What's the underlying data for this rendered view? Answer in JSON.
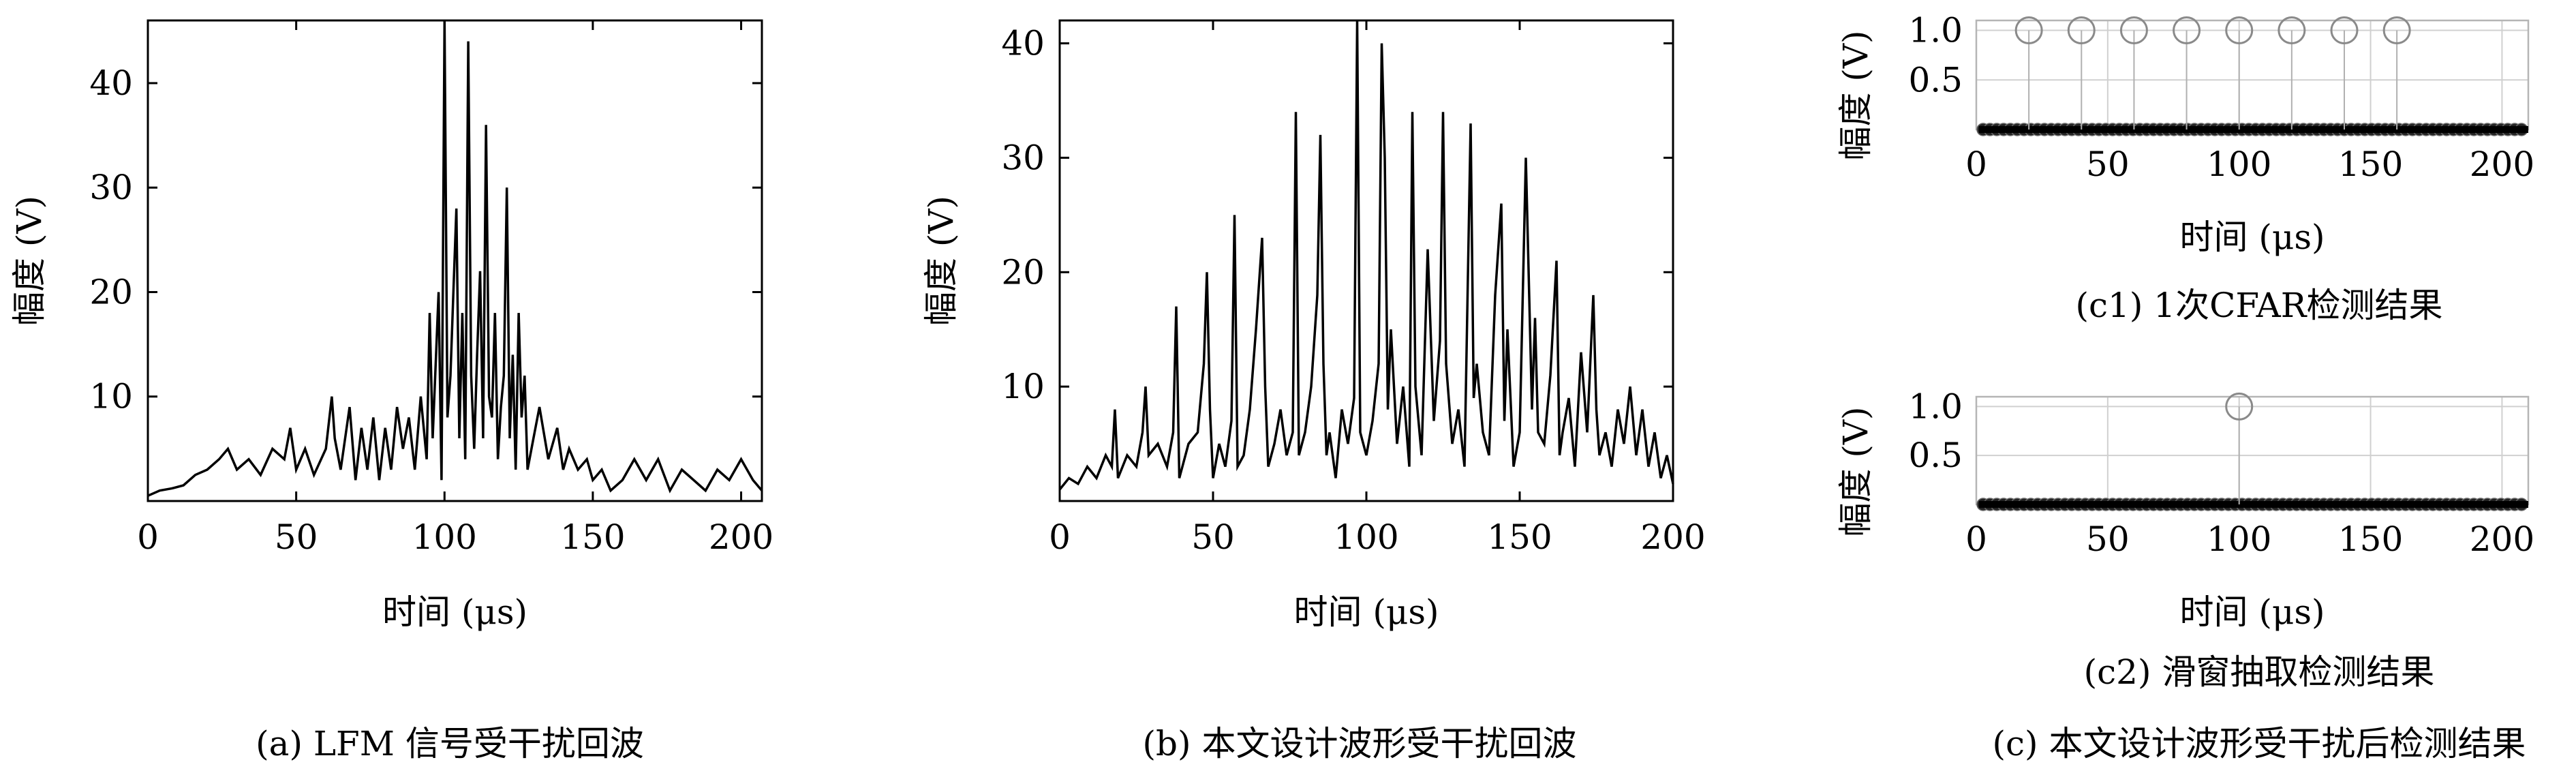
{
  "chart_data": [
    {
      "id": "a",
      "type": "line",
      "caption": "(a) LFM 信号受干扰回波",
      "xlabel": "时间 (μs)",
      "ylabel": "幅度 (V)",
      "xlim": [
        0,
        207
      ],
      "ylim": [
        0,
        46
      ],
      "xticks": [
        0,
        50,
        100,
        150,
        200
      ],
      "yticks": [
        10,
        20,
        30,
        40
      ],
      "grid": false,
      "series": [
        {
          "x": [
            0,
            4,
            8,
            12,
            16,
            20,
            24,
            27,
            30,
            34,
            38,
            42,
            46,
            48,
            50,
            53,
            56,
            60,
            62,
            63,
            65,
            68,
            70,
            72,
            74,
            76,
            78,
            80,
            82,
            84,
            86,
            88,
            90,
            92,
            94,
            95,
            96,
            98,
            99,
            100,
            101,
            102,
            103,
            104,
            105,
            106,
            107,
            108,
            109,
            110,
            111,
            112,
            113,
            114,
            115,
            116,
            117,
            118,
            119,
            120,
            121,
            122,
            123,
            124,
            125,
            126,
            127,
            128,
            130,
            132,
            135,
            138,
            140,
            142,
            145,
            148,
            150,
            153,
            156,
            160,
            164,
            168,
            172,
            176,
            180,
            184,
            188,
            192,
            196,
            200,
            204,
            207
          ],
          "y": [
            0.5,
            1,
            1.2,
            1.5,
            2.5,
            3,
            4,
            5,
            3,
            4,
            2.5,
            5,
            4,
            7,
            3,
            5,
            2.5,
            5,
            10,
            6,
            3,
            9,
            2,
            7,
            3,
            8,
            2,
            7,
            3,
            9,
            5,
            8,
            3,
            10,
            4,
            18,
            6,
            20,
            2,
            46,
            8,
            12,
            20,
            28,
            6,
            18,
            4,
            44,
            12,
            5,
            14,
            22,
            6,
            36,
            10,
            8,
            18,
            4,
            9,
            12,
            30,
            6,
            14,
            3,
            18,
            8,
            12,
            3,
            6,
            9,
            4,
            7,
            3,
            5,
            3,
            4,
            2,
            3,
            1,
            2,
            4,
            2,
            4,
            1,
            3,
            2,
            1,
            3,
            2,
            4,
            2,
            1
          ]
        }
      ]
    },
    {
      "id": "b",
      "type": "line",
      "caption": "(b) 本文设计波形受干扰回波",
      "xlabel": "时间 (μs)",
      "ylabel": "幅度 (V)",
      "xlim": [
        0,
        200
      ],
      "ylim": [
        0,
        42
      ],
      "xticks": [
        0,
        50,
        100,
        150,
        200
      ],
      "yticks": [
        10,
        20,
        30,
        40
      ],
      "grid": false,
      "series": [
        {
          "x": [
            0,
            3,
            6,
            9,
            12,
            15,
            17,
            18,
            19,
            22,
            25,
            27,
            28,
            29,
            32,
            35,
            37,
            38,
            39,
            42,
            45,
            47,
            48,
            49,
            50,
            52,
            54,
            56,
            57,
            58,
            60,
            62,
            64,
            66,
            67,
            68,
            70,
            72,
            74,
            76,
            77,
            78,
            80,
            82,
            84,
            85,
            86,
            87,
            88,
            90,
            92,
            94,
            96,
            97,
            98,
            100,
            102,
            104,
            105,
            106,
            107,
            108,
            110,
            112,
            114,
            115,
            116,
            118,
            120,
            122,
            124,
            125,
            126,
            128,
            130,
            132,
            134,
            135,
            136,
            138,
            140,
            142,
            144,
            145,
            146,
            148,
            150,
            152,
            154,
            155,
            156,
            158,
            160,
            162,
            163,
            164,
            166,
            168,
            170,
            172,
            174,
            175,
            176,
            178,
            180,
            182,
            184,
            186,
            188,
            190,
            192,
            194,
            196,
            198,
            200
          ],
          "y": [
            1,
            2,
            1.5,
            3,
            2,
            4,
            3,
            8,
            2,
            4,
            3,
            6,
            10,
            4,
            5,
            3,
            6,
            17,
            2,
            5,
            6,
            12,
            20,
            8,
            2,
            5,
            3,
            7,
            25,
            3,
            4,
            8,
            15,
            23,
            10,
            3,
            5,
            8,
            4,
            6,
            34,
            4,
            6,
            10,
            18,
            32,
            12,
            4,
            6,
            2,
            8,
            5,
            9,
            42,
            6,
            4,
            7,
            12,
            40,
            30,
            8,
            15,
            5,
            10,
            3,
            34,
            10,
            4,
            22,
            7,
            14,
            34,
            12,
            5,
            8,
            3,
            33,
            9,
            12,
            6,
            4,
            18,
            26,
            7,
            15,
            3,
            6,
            30,
            8,
            16,
            6,
            5,
            11,
            21,
            4,
            6,
            9,
            3,
            13,
            6,
            18,
            8,
            4,
            6,
            3,
            8,
            5,
            10,
            4,
            8,
            3,
            6,
            2,
            4,
            1.5
          ]
        }
      ]
    },
    {
      "id": "c1",
      "type": "scatter",
      "caption": "(c1) 1次CFAR检测结果",
      "xlabel": "时间 (μs)",
      "ylabel": "幅度 (V)",
      "xlim": [
        0,
        210
      ],
      "ylim": [
        0,
        1.1
      ],
      "xticks": [
        0,
        50,
        100,
        150,
        200
      ],
      "yticks": [
        0.5,
        1.0
      ],
      "ytick_labels": [
        "0.5",
        "1.0"
      ],
      "grid": true,
      "detections_x": [
        20,
        40,
        60,
        80,
        100,
        120,
        140,
        160
      ],
      "detection_value": 1,
      "baseline_value": 0
    },
    {
      "id": "c2",
      "type": "scatter",
      "caption": "(c2) 滑窗抽取检测结果",
      "xlabel": "时间 (μs)",
      "ylabel": "幅度 (V)",
      "xlim": [
        0,
        210
      ],
      "ylim": [
        0,
        1.1
      ],
      "xticks": [
        0,
        50,
        100,
        150,
        200
      ],
      "yticks": [
        0.5,
        1.0
      ],
      "ytick_labels": [
        "0.5",
        "1.0"
      ],
      "grid": true,
      "detections_x": [
        100
      ],
      "detection_value": 1,
      "baseline_value": 0
    }
  ],
  "figure_caption_c": "(c) 本文设计波形受干扰后检测结果"
}
